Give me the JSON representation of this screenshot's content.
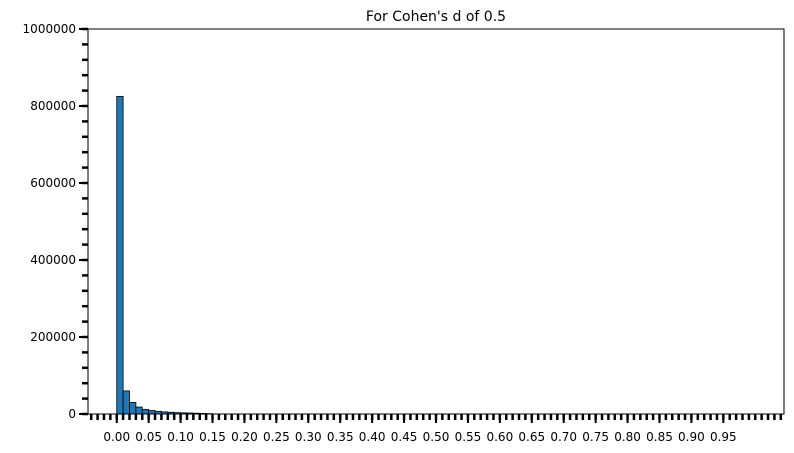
{
  "chart_data": {
    "type": "bar",
    "title": "For Cohen's d of 0.5",
    "xlabel": "",
    "ylabel": "",
    "bar_color": "#1f77b4",
    "edge_color": "#000000",
    "bin_width": 0.01,
    "x_start": 0.0,
    "values": [
      825000,
      60000,
      30000,
      18000,
      12000,
      9000,
      7000,
      5500,
      4500,
      3500,
      3000,
      2500,
      2000,
      1500,
      1000
    ],
    "xlim": [
      -0.045,
      1.045
    ],
    "ylim": [
      0,
      1000000
    ],
    "x_tick_labels": [
      "0.00",
      "0.05",
      "0.10",
      "0.15",
      "0.20",
      "0.25",
      "0.30",
      "0.35",
      "0.40",
      "0.45",
      "0.50",
      "0.55",
      "0.60",
      "0.65",
      "0.70",
      "0.75",
      "0.80",
      "0.85",
      "0.90",
      "0.95"
    ],
    "x_tick_values": [
      0.0,
      0.05,
      0.1,
      0.15,
      0.2,
      0.25,
      0.3,
      0.35,
      0.4,
      0.45,
      0.5,
      0.55,
      0.6,
      0.65,
      0.7,
      0.75,
      0.8,
      0.85,
      0.9,
      0.95
    ],
    "y_tick_labels": [
      "0",
      "200000",
      "400000",
      "600000",
      "800000",
      "1000000"
    ],
    "y_tick_values": [
      0,
      200000,
      400000,
      600000,
      800000,
      1000000
    ],
    "x_minor_step": 0.01,
    "y_minor_step": 40000,
    "grid": false
  }
}
